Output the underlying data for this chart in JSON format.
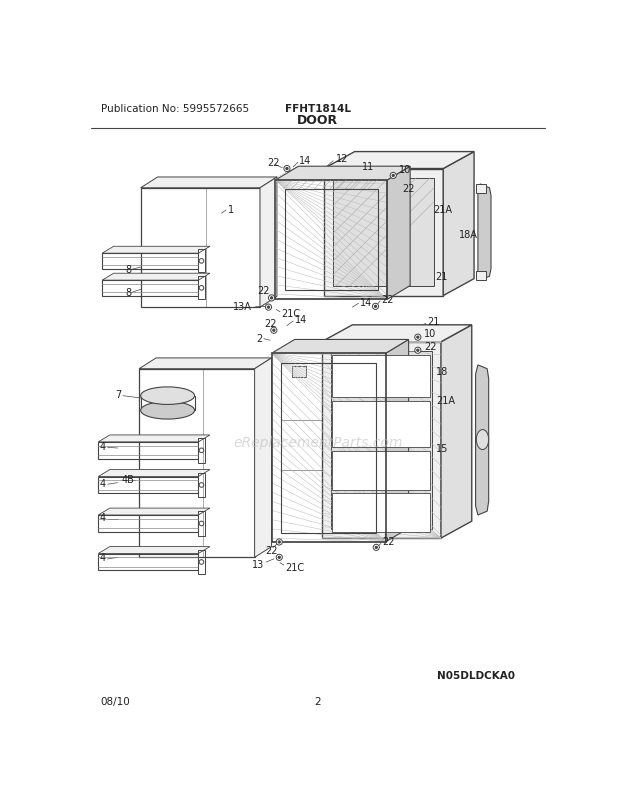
{
  "pub_no": "Publication No: 5995572665",
  "model": "FFHT1814L",
  "section": "DOOR",
  "diagram_id": "N05DLDCKA0",
  "date": "08/10",
  "page": "2",
  "watermark": "eReplacementParts.com",
  "bg_color": "#ffffff",
  "lc": "#444444",
  "tc": "#222222",
  "fc_light": "#f0f0f0",
  "fc_mid": "#e0e0e0",
  "fc_dark": "#cccccc",
  "lw_main": 1.0,
  "lw_thin": 0.6,
  "fs_label": 7.0,
  "fs_title": 9.0,
  "fs_header": 7.5
}
